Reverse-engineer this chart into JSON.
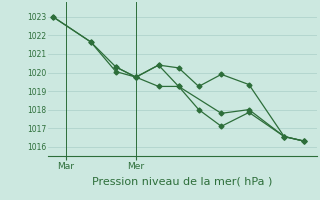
{
  "bg_color": "#cce8e0",
  "line_color": "#2d6e3a",
  "grid_color": "#aacfc8",
  "title": "Pression niveau de la mer( hPa )",
  "title_fontsize": 8,
  "ylim": [
    1015.5,
    1023.8
  ],
  "yticks": [
    1016,
    1017,
    1018,
    1019,
    1020,
    1021,
    1022,
    1023
  ],
  "xlim": [
    -0.2,
    10.5
  ],
  "xtick_labels": [
    "Mar",
    "Mer"
  ],
  "xtick_pos": [
    0.5,
    3.3
  ],
  "vline_pos": [
    0.5,
    3.3
  ],
  "line1_x": [
    0,
    1.5,
    2.5,
    3.3,
    4.2,
    5.0,
    5.8,
    6.7,
    7.8,
    9.2,
    10.0
  ],
  "line1_y": [
    1023.0,
    1021.65,
    1020.3,
    1019.75,
    1020.4,
    1020.25,
    1019.25,
    1019.9,
    1019.35,
    1016.55,
    1016.3
  ],
  "line2_x": [
    0,
    1.5,
    2.5,
    3.3,
    3.3,
    4.2,
    5.0,
    5.8,
    6.7,
    7.8,
    9.2,
    10.0
  ],
  "line2_y": [
    1023.0,
    1021.65,
    1020.05,
    1019.75,
    1019.75,
    1019.25,
    1019.25,
    1018.0,
    1017.1,
    1017.85,
    1016.55,
    1016.3
  ],
  "line3_x": [
    2.5,
    3.3,
    4.2,
    5.0,
    6.7,
    7.8,
    9.2,
    10.0
  ],
  "line3_y": [
    1020.3,
    1019.75,
    1020.4,
    1019.25,
    1017.8,
    1018.0,
    1016.55,
    1016.3
  ],
  "marker": "D",
  "markersize": 2.5
}
